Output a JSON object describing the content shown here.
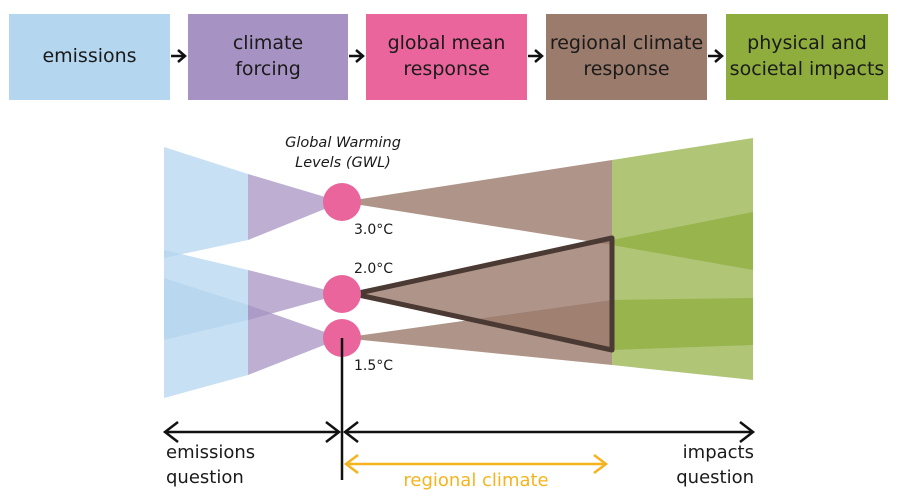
{
  "chain": {
    "emissions": "emissions",
    "climate_forcing": "climate\nforcing",
    "global_mean_response": "global mean\nresponse",
    "regional_climate_response": "regional climate\nresponse",
    "impacts": "physical and\nsocietal impacts"
  },
  "colors": {
    "emissions": "#b4d6ef",
    "forcing": "#a793c3",
    "global": "#e9659b",
    "regional": "#9b7b6b",
    "impacts": "#8fad3c",
    "orange": "#f5b41e"
  },
  "gwl": {
    "title": "Global Warming\nLevels (GWL)",
    "level_high": "3.0°C",
    "level_mid": "2.0°C",
    "level_low": "1.5°C"
  },
  "axis": {
    "emissions_question": "emissions\nquestion",
    "impacts_question": "impacts\nquestion",
    "regional_climate": "regional climate"
  }
}
